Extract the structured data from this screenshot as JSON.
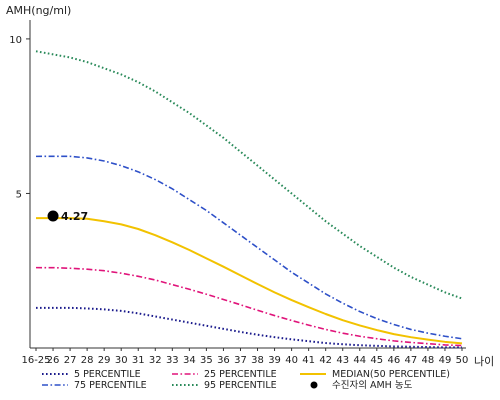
{
  "chart_data": {
    "type": "line",
    "ylabel": "AMH(ng/ml)",
    "xlabel": "나이",
    "ylim": [
      0,
      11
    ],
    "yticks": [
      5,
      10
    ],
    "categories": [
      "16-25",
      "26",
      "27",
      "28",
      "29",
      "30",
      "31",
      "32",
      "33",
      "34",
      "35",
      "36",
      "37",
      "38",
      "39",
      "40",
      "41",
      "42",
      "43",
      "44",
      "45",
      "46",
      "47",
      "48",
      "49",
      "50"
    ],
    "series": [
      {
        "name": "5 PERCENTILE",
        "color": "#1a1a8c",
        "dash": "dot",
        "values": [
          1.3,
          1.3,
          1.3,
          1.28,
          1.25,
          1.2,
          1.12,
          1.02,
          0.92,
          0.82,
          0.72,
          0.62,
          0.52,
          0.43,
          0.35,
          0.28,
          0.22,
          0.16,
          0.12,
          0.09,
          0.07,
          0.05,
          0.04,
          0.03,
          0.02,
          0.02
        ]
      },
      {
        "name": "25 PERCENTILE",
        "color": "#e0147a",
        "dash": "dashdot",
        "values": [
          2.6,
          2.6,
          2.58,
          2.55,
          2.5,
          2.42,
          2.32,
          2.2,
          2.05,
          1.9,
          1.74,
          1.57,
          1.4,
          1.22,
          1.05,
          0.89,
          0.74,
          0.6,
          0.48,
          0.38,
          0.3,
          0.23,
          0.18,
          0.14,
          0.1,
          0.08
        ]
      },
      {
        "name": "75 PERCENTILE",
        "color": "#2e50c8",
        "dash": "dashdot",
        "values": [
          6.2,
          6.2,
          6.2,
          6.15,
          6.05,
          5.9,
          5.7,
          5.45,
          5.15,
          4.8,
          4.45,
          4.05,
          3.65,
          3.25,
          2.85,
          2.45,
          2.1,
          1.75,
          1.45,
          1.18,
          0.95,
          0.76,
          0.6,
          0.48,
          0.38,
          0.3
        ]
      },
      {
        "name": "95 PERCENTILE",
        "color": "#2a8a5a",
        "dash": "dot",
        "values": [
          9.6,
          9.5,
          9.4,
          9.25,
          9.05,
          8.85,
          8.6,
          8.3,
          7.95,
          7.6,
          7.2,
          6.8,
          6.35,
          5.9,
          5.45,
          5.0,
          4.55,
          4.1,
          3.7,
          3.3,
          2.95,
          2.6,
          2.3,
          2.05,
          1.8,
          1.6
        ]
      },
      {
        "name": "MEDIAN(50 PERCENTILE)",
        "color": "#f2c200",
        "dash": "solid",
        "values": [
          4.2,
          4.2,
          4.2,
          4.18,
          4.1,
          4.0,
          3.85,
          3.65,
          3.42,
          3.17,
          2.9,
          2.63,
          2.35,
          2.07,
          1.8,
          1.55,
          1.32,
          1.1,
          0.9,
          0.73,
          0.58,
          0.45,
          0.35,
          0.27,
          0.2,
          0.15
        ]
      }
    ],
    "patient": {
      "label": "수진자의 AMH 농도",
      "x": "26",
      "y": 4.27,
      "value_label": "4.27",
      "color": "#000000"
    },
    "legend": {
      "position": "bottom",
      "order": [
        "5 PERCENTILE",
        "25 PERCENTILE",
        "MEDIAN(50 PERCENTILE)",
        "75 PERCENTILE",
        "95 PERCENTILE",
        "수진자의 AMH 농도"
      ]
    },
    "grid": false
  }
}
